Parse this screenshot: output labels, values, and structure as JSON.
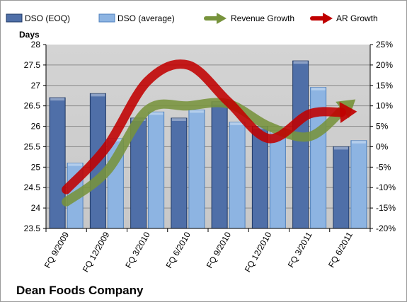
{
  "chart_data": {
    "type": "bar",
    "title": "Dean Foods Company",
    "ylabel": "Days",
    "categories": [
      "FQ 9/2009",
      "FQ 12/2009",
      "FQ 3/2010",
      "FQ 6/2010",
      "FQ 9/2010",
      "FQ 12/2010",
      "FQ 3/2011",
      "FQ 6/2011"
    ],
    "ylim": [
      23.5,
      28
    ],
    "y2lim": [
      -20,
      25
    ],
    "yticks": [
      "23.5",
      "24",
      "24.5",
      "25",
      "25.5",
      "26",
      "26.5",
      "27",
      "27.5",
      "28"
    ],
    "y2ticks": [
      "-20%",
      "-15%",
      "-10%",
      "-5%",
      "0%",
      "5%",
      "10%",
      "15%",
      "20%",
      "25%"
    ],
    "legend_position": "top",
    "grid": true,
    "series": [
      {
        "name": "DSO (EOQ)",
        "kind": "bar",
        "axis": "left",
        "color": "#4f6fa8",
        "values": [
          26.7,
          26.8,
          26.2,
          26.2,
          26.6,
          26.0,
          27.6,
          25.5
        ]
      },
      {
        "name": "DSO (average)",
        "kind": "bar",
        "axis": "left",
        "color": "#8db4e2",
        "values": [
          25.1,
          25.7,
          26.35,
          26.4,
          26.1,
          25.9,
          26.95,
          25.65
        ]
      },
      {
        "name": "Revenue Growth",
        "kind": "line",
        "axis": "right",
        "unit": "%",
        "color": "#77933c",
        "values": [
          -13.5,
          -6,
          9,
          10,
          10.5,
          5,
          2.5,
          10.5
        ]
      },
      {
        "name": "AR Growth",
        "kind": "line",
        "axis": "right",
        "unit": "%",
        "color": "#c00000",
        "values": [
          -10.5,
          0,
          16,
          20,
          11,
          2,
          8,
          8.5
        ]
      }
    ]
  }
}
